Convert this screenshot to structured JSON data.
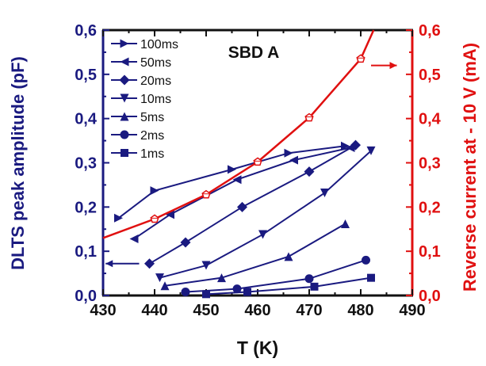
{
  "chart_data": {
    "type": "line",
    "title": "SBD A",
    "xlabel": "T (K)",
    "ylabel": "DLTS peak amplitude (pF)",
    "y2label": "Reverse current at - 10 V (mA)",
    "xlim": [
      430,
      490
    ],
    "ylim": [
      0,
      0.6
    ],
    "y2lim": [
      0,
      0.6
    ],
    "x_ticks": [
      "430",
      "440",
      "450",
      "460",
      "470",
      "480",
      "490"
    ],
    "y_ticks": [
      "0,0",
      "0,1",
      "0,2",
      "0,3",
      "0,4",
      "0,5",
      "0,6"
    ],
    "y2_ticks": [
      "0,0",
      "0,1",
      "0,2",
      "0,3",
      "0,4",
      "0,5",
      "0,6"
    ],
    "grid": false,
    "legend_position": "top-left",
    "colors": {
      "left_axis": "#1a1a80",
      "right_axis": "#e01010",
      "series": "#1a1a80",
      "current": "#e01010"
    },
    "series": [
      {
        "name": "100ms",
        "marker": "triangle-right",
        "axis": "left",
        "x": [
          433,
          440,
          455,
          466,
          477
        ],
        "y": [
          0.175,
          0.237,
          0.285,
          0.322,
          0.338
        ]
      },
      {
        "name": "50ms",
        "marker": "triangle-left",
        "axis": "left",
        "x": [
          436,
          443,
          456,
          467,
          478
        ],
        "y": [
          0.128,
          0.183,
          0.262,
          0.306,
          0.334
        ]
      },
      {
        "name": "20ms",
        "marker": "diamond",
        "axis": "left",
        "x": [
          439,
          446,
          457,
          470,
          479
        ],
        "y": [
          0.072,
          0.12,
          0.2,
          0.28,
          0.34
        ]
      },
      {
        "name": "10ms",
        "marker": "triangle-down",
        "axis": "left",
        "x": [
          441,
          450,
          461,
          473,
          482
        ],
        "y": [
          0.04,
          0.068,
          0.138,
          0.232,
          0.327
        ]
      },
      {
        "name": "5ms",
        "marker": "triangle-up",
        "axis": "left",
        "x": [
          442,
          453,
          466,
          477
        ],
        "y": [
          0.022,
          0.04,
          0.088,
          0.162
        ]
      },
      {
        "name": "2ms",
        "marker": "circle",
        "axis": "left",
        "x": [
          446,
          456,
          470,
          481
        ],
        "y": [
          0.008,
          0.015,
          0.038,
          0.08
        ]
      },
      {
        "name": "1ms",
        "marker": "square",
        "axis": "left",
        "x": [
          450,
          458,
          471,
          482
        ],
        "y": [
          0.003,
          0.008,
          0.02,
          0.04
        ]
      },
      {
        "marker": "pentagon-open",
        "axis": "right",
        "x": [
          430,
          440,
          450,
          460,
          470,
          480,
          482.5
        ],
        "y": [
          0.13,
          0.173,
          0.228,
          0.302,
          0.402,
          0.535,
          0.6
        ]
      }
    ],
    "annotations": [
      {
        "type": "arrow",
        "direction": "left",
        "axis": "left",
        "color": "#1a1a80",
        "x_from": 437,
        "x_to": 430.5,
        "y": 0.072
      },
      {
        "type": "arrow",
        "direction": "right",
        "axis": "right",
        "color": "#e01010",
        "x_from": 482,
        "x_to": 487,
        "y": 0.52
      }
    ]
  }
}
